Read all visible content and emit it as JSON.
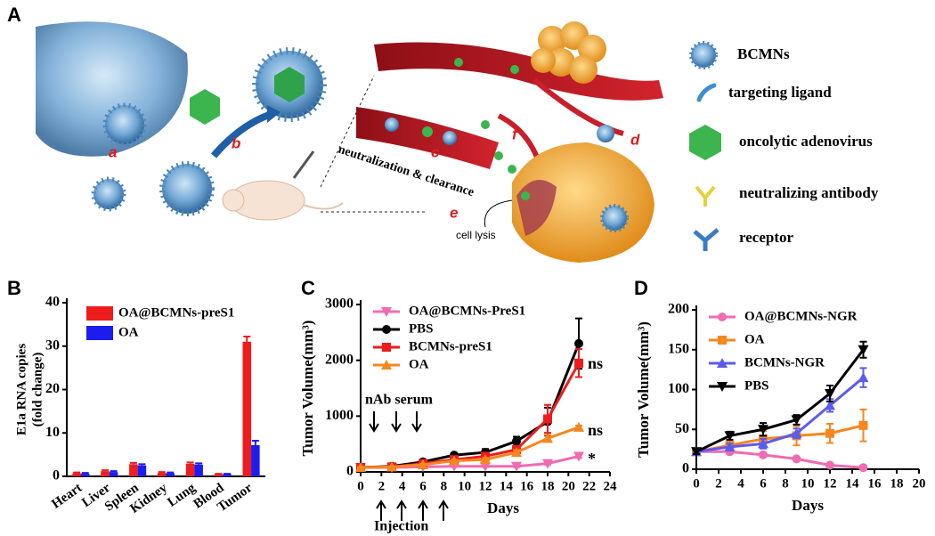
{
  "panel_a": {
    "label": "A",
    "legend": {
      "items": [
        "BCMNs",
        "targeting ligand",
        "oncolytic adenovirus",
        "neutralizing antibody",
        "receptor"
      ]
    },
    "steps": [
      "a",
      "b",
      "c",
      "d",
      "e",
      "f"
    ],
    "annotations": [
      "neutralization & clearance",
      "cell lysis"
    ]
  },
  "chart_data": [
    {
      "panel": "B",
      "type": "bar",
      "ylabel": [
        "E1a RNA copies",
        "(fold change)"
      ],
      "categories": [
        "Heart",
        "Liver",
        "Spleen",
        "Kidney",
        "Lung",
        "Blood",
        "Tumor"
      ],
      "series": [
        {
          "name": "OA@BCMNs-preS1",
          "color": "#ee1c1c",
          "values": [
            0.7,
            1.2,
            2.8,
            0.8,
            2.9,
            0.5,
            31
          ],
          "errors": [
            0.2,
            0.2,
            0.3,
            0.2,
            0.3,
            0.1,
            1.2
          ]
        },
        {
          "name": "OA",
          "color": "#1c1cee",
          "values": [
            0.6,
            1.0,
            2.5,
            0.7,
            2.7,
            0.5,
            7.2
          ],
          "errors": [
            0.2,
            0.2,
            0.3,
            0.2,
            0.3,
            0.1,
            1.0
          ]
        }
      ],
      "ylim": [
        0,
        40
      ],
      "yticks": [
        0,
        10,
        20,
        30,
        40
      ],
      "legend": "upper left"
    },
    {
      "panel": "C",
      "type": "line",
      "ylabel": "Tumor Volume(mm³)",
      "xlabel": "Days",
      "x": [
        0,
        3,
        6,
        9,
        12,
        15,
        18,
        21
      ],
      "series": [
        {
          "name": "OA@BCMNs-PreS1",
          "color": "#f06bb0",
          "marker": "triangle-down",
          "values": [
            80,
            80,
            90,
            100,
            100,
            100,
            150,
            280
          ],
          "errors": [
            10,
            10,
            10,
            10,
            10,
            15,
            20,
            30
          ]
        },
        {
          "name": "PBS",
          "color": "#000000",
          "marker": "circle",
          "values": [
            80,
            100,
            180,
            300,
            350,
            550,
            900,
            2300
          ],
          "errors": [
            10,
            15,
            20,
            30,
            60,
            80,
            250,
            450
          ]
        },
        {
          "name": "BCMNs-preS1",
          "color": "#ee1c1c",
          "marker": "square",
          "values": [
            80,
            90,
            150,
            220,
            280,
            400,
            950,
            1950
          ],
          "errors": [
            10,
            10,
            20,
            30,
            40,
            60,
            250,
            250
          ]
        },
        {
          "name": "OA",
          "color": "#f7861e",
          "marker": "triangle-up",
          "values": [
            80,
            90,
            130,
            200,
            220,
            350,
            600,
            800
          ],
          "errors": [
            10,
            10,
            15,
            20,
            30,
            40,
            60,
            30
          ]
        }
      ],
      "xlim": [
        0,
        24
      ],
      "xticks": [
        0,
        2,
        4,
        6,
        8,
        10,
        12,
        14,
        16,
        18,
        20,
        22,
        24
      ],
      "ylim": [
        0,
        3000
      ],
      "yticks": [
        0,
        1000,
        2000,
        3000
      ],
      "legend": "upper left",
      "annotations": [
        "nAb serum",
        "Injection",
        "ns",
        "ns",
        "*"
      ]
    },
    {
      "panel": "D",
      "type": "line",
      "ylabel": "Tumor Volume(mm³)",
      "xlabel": "Days",
      "x": [
        0,
        3,
        6,
        9,
        12,
        15
      ],
      "series": [
        {
          "name": "OA@BCMNs-NGR",
          "color": "#f06bb0",
          "marker": "circle",
          "values": [
            22,
            22,
            18,
            13,
            5,
            2
          ],
          "errors": [
            2,
            2,
            2,
            2,
            1,
            1
          ]
        },
        {
          "name": "OA",
          "color": "#f7861e",
          "marker": "square",
          "values": [
            22,
            30,
            38,
            42,
            45,
            55
          ],
          "errors": [
            4,
            5,
            10,
            12,
            12,
            20
          ]
        },
        {
          "name": "BCMNs-NGR",
          "color": "#5b5bf0",
          "marker": "triangle-up",
          "values": [
            22,
            28,
            32,
            45,
            80,
            115
          ],
          "errors": [
            3,
            4,
            6,
            6,
            8,
            12
          ]
        },
        {
          "name": "PBS",
          "color": "#000000",
          "marker": "triangle-down",
          "values": [
            22,
            42,
            50,
            62,
            95,
            150
          ],
          "errors": [
            3,
            5,
            8,
            6,
            10,
            10
          ]
        }
      ],
      "xlim": [
        0,
        20
      ],
      "xticks": [
        0,
        2,
        4,
        6,
        8,
        10,
        12,
        14,
        16,
        18,
        20
      ],
      "ylim": [
        0,
        200
      ],
      "yticks": [
        0,
        50,
        100,
        150,
        200
      ],
      "legend": "upper left"
    }
  ]
}
